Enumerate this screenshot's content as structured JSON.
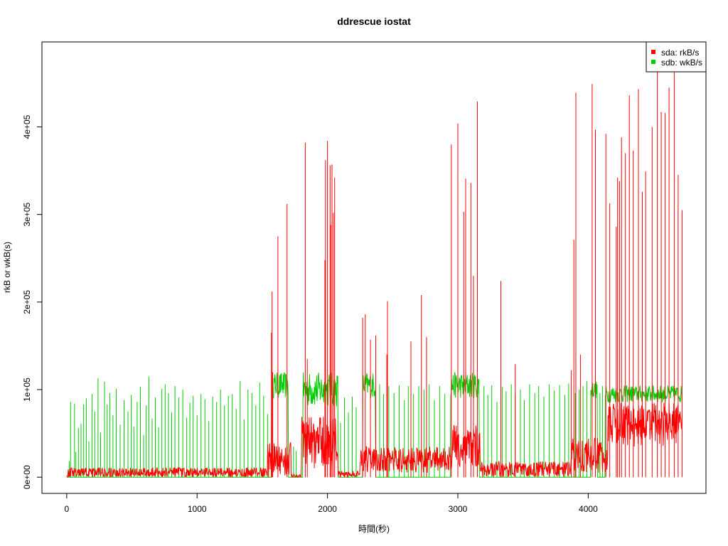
{
  "chart_data": {
    "type": "line",
    "title": "ddrescue iostat",
    "xlabel": "時間(秒)",
    "ylabel": "rkB or wkB(s)",
    "xlim": [
      -190,
      4903
    ],
    "ylim": [
      -18500,
      497000
    ],
    "x_ticks": [
      0,
      1000,
      2000,
      3000,
      4000
    ],
    "x_tick_labels": [
      "0",
      "1000",
      "2000",
      "3000",
      "4000"
    ],
    "y_ticks": [
      0,
      100000,
      200000,
      300000,
      400000
    ],
    "y_tick_labels": [
      "0e+00",
      "1e+05",
      "2e+05",
      "3e+05",
      "4e+05"
    ],
    "grid": false,
    "legend_position": "top-right",
    "series": [
      {
        "name": "sda: rkB/s",
        "color": "#ff0000",
        "baseline": 5000,
        "regions": [
          [
            0,
            1540,
            5000,
            6000
          ],
          [
            1540,
            1720,
            20000,
            20000
          ],
          [
            1720,
            1800,
            0,
            2000
          ],
          [
            1800,
            2080,
            40000,
            30000
          ],
          [
            2080,
            2250,
            3000,
            4000
          ],
          [
            2250,
            2950,
            20000,
            15000
          ],
          [
            2950,
            3170,
            35000,
            25000
          ],
          [
            3170,
            3870,
            8000,
            10000
          ],
          [
            3870,
            4150,
            25000,
            20000
          ],
          [
            4150,
            4720,
            60000,
            25000
          ]
        ],
        "spikes": [
          [
            1570,
            165000
          ],
          [
            1575,
            212000
          ],
          [
            1580,
            120000
          ],
          [
            1620,
            275000
          ],
          [
            1690,
            312000
          ],
          [
            1830,
            382000
          ],
          [
            1845,
            135000
          ],
          [
            1980,
            248000
          ],
          [
            1985,
            362000
          ],
          [
            2000,
            384000
          ],
          [
            2020,
            356000
          ],
          [
            2025,
            288000
          ],
          [
            2035,
            357000
          ],
          [
            2045,
            302000
          ],
          [
            2055,
            342000
          ],
          [
            2270,
            182000
          ],
          [
            2290,
            186000
          ],
          [
            2330,
            157000
          ],
          [
            2370,
            162000
          ],
          [
            2455,
            140000
          ],
          [
            2460,
            201000
          ],
          [
            2640,
            155000
          ],
          [
            2720,
            208000
          ],
          [
            2760,
            160000
          ],
          [
            2950,
            380000
          ],
          [
            3000,
            404000
          ],
          [
            3045,
            303000
          ],
          [
            3060,
            341000
          ],
          [
            3100,
            336000
          ],
          [
            3120,
            230000
          ],
          [
            3150,
            429000
          ],
          [
            3330,
            224000
          ],
          [
            3440,
            129000
          ],
          [
            3870,
            122000
          ],
          [
            3890,
            271000
          ],
          [
            3905,
            439000
          ],
          [
            3940,
            140000
          ],
          [
            4030,
            449000
          ],
          [
            4055,
            397000
          ],
          [
            4135,
            392000
          ],
          [
            4165,
            313000
          ],
          [
            4215,
            286000
          ],
          [
            4225,
            342000
          ],
          [
            4240,
            338000
          ],
          [
            4255,
            388000
          ],
          [
            4285,
            370000
          ],
          [
            4315,
            436000
          ],
          [
            4345,
            373000
          ],
          [
            4385,
            443000
          ],
          [
            4415,
            326000
          ],
          [
            4440,
            349000
          ],
          [
            4490,
            400000
          ],
          [
            4530,
            474000
          ],
          [
            4560,
            417000
          ],
          [
            4590,
            416000
          ],
          [
            4620,
            445000
          ],
          [
            4660,
            470000
          ],
          [
            4690,
            345000
          ],
          [
            4720,
            305000
          ]
        ]
      },
      {
        "name": "sdb: wkB/s",
        "color": "#00cd00",
        "regions": [
          [
            1570,
            1700,
            105000,
            15000
          ],
          [
            1810,
            2080,
            100000,
            20000
          ],
          [
            2270,
            2370,
            105000,
            15000
          ],
          [
            2945,
            3165,
            105000,
            15000
          ],
          [
            4020,
            4070,
            100000,
            10000
          ],
          [
            4130,
            4720,
            95000,
            10000
          ]
        ],
        "spikes": [
          [
            20,
            18000
          ],
          [
            30,
            86000
          ],
          [
            60,
            84000
          ],
          [
            70,
            29000
          ],
          [
            90,
            56000
          ],
          [
            110,
            61000
          ],
          [
            130,
            83000
          ],
          [
            150,
            90000
          ],
          [
            170,
            41000
          ],
          [
            195,
            95000
          ],
          [
            215,
            75000
          ],
          [
            240,
            113000
          ],
          [
            260,
            51000
          ],
          [
            290,
            109000
          ],
          [
            310,
            83000
          ],
          [
            330,
            96000
          ],
          [
            355,
            71000
          ],
          [
            380,
            101000
          ],
          [
            410,
            60000
          ],
          [
            440,
            88000
          ],
          [
            470,
            75000
          ],
          [
            495,
            94000
          ],
          [
            515,
            58000
          ],
          [
            540,
            86000
          ],
          [
            565,
            103000
          ],
          [
            590,
            48000
          ],
          [
            610,
            82000
          ],
          [
            630,
            115000
          ],
          [
            655,
            67000
          ],
          [
            680,
            91000
          ],
          [
            705,
            57000
          ],
          [
            730,
            101000
          ],
          [
            755,
            106000
          ],
          [
            780,
            96000
          ],
          [
            805,
            74000
          ],
          [
            830,
            104000
          ],
          [
            860,
            91000
          ],
          [
            890,
            100000
          ],
          [
            920,
            68000
          ],
          [
            945,
            85000
          ],
          [
            970,
            93000
          ],
          [
            1000,
            71000
          ],
          [
            1030,
            95000
          ],
          [
            1060,
            89000
          ],
          [
            1090,
            64000
          ],
          [
            1120,
            92000
          ],
          [
            1150,
            86000
          ],
          [
            1180,
            100000
          ],
          [
            1210,
            82000
          ],
          [
            1240,
            93000
          ],
          [
            1270,
            95000
          ],
          [
            1300,
            78000
          ],
          [
            1330,
            110000
          ],
          [
            1360,
            66000
          ],
          [
            1390,
            100000
          ],
          [
            1420,
            96000
          ],
          [
            1450,
            82000
          ],
          [
            1480,
            108000
          ],
          [
            1510,
            93000
          ],
          [
            1540,
            72000
          ],
          [
            1740,
            35000
          ],
          [
            1760,
            30000
          ],
          [
            2100,
            62000
          ],
          [
            2130,
            91000
          ],
          [
            2160,
            74000
          ],
          [
            2190,
            92000
          ],
          [
            2220,
            80000
          ],
          [
            2400,
            106000
          ],
          [
            2430,
            95000
          ],
          [
            2470,
            104000
          ],
          [
            2510,
            96000
          ],
          [
            2550,
            105000
          ],
          [
            2590,
            88000
          ],
          [
            2620,
            104000
          ],
          [
            2660,
            95000
          ],
          [
            2700,
            104000
          ],
          [
            2740,
            100000
          ],
          [
            2780,
            106000
          ],
          [
            2820,
            88000
          ],
          [
            2860,
            104000
          ],
          [
            2900,
            95000
          ],
          [
            3200,
            104000
          ],
          [
            3230,
            94000
          ],
          [
            3260,
            105000
          ],
          [
            3300,
            86000
          ],
          [
            3340,
            103000
          ],
          [
            3370,
            98000
          ],
          [
            3410,
            106000
          ],
          [
            3440,
            95000
          ],
          [
            3480,
            100000
          ],
          [
            3510,
            88000
          ],
          [
            3550,
            106000
          ],
          [
            3590,
            96000
          ],
          [
            3620,
            104000
          ],
          [
            3660,
            92000
          ],
          [
            3700,
            106000
          ],
          [
            3740,
            99000
          ],
          [
            3780,
            105000
          ],
          [
            3820,
            94000
          ],
          [
            3850,
            107000
          ],
          [
            3900,
            96000
          ],
          [
            3930,
            100000
          ],
          [
            3960,
            104000
          ],
          [
            3990,
            110000
          ],
          [
            4090,
            96000
          ],
          [
            4110,
            104000
          ]
        ]
      }
    ]
  }
}
